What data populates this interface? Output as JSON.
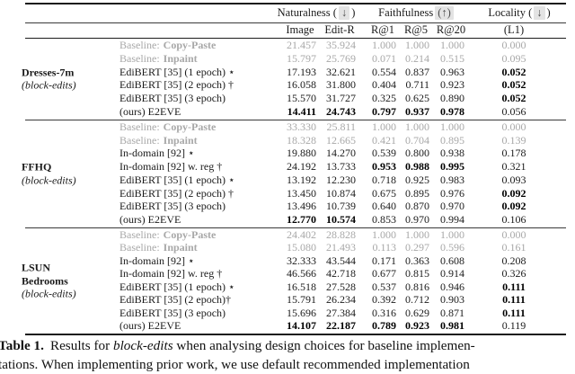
{
  "colors": {
    "muted_gray": "#a8a8a8",
    "arrow_highlight_box": "#e3e3e3",
    "rule_black": "#1c1c1c"
  },
  "header": {
    "groups": [
      {
        "label": "Naturalness (",
        "boxed": "↓",
        "after": ")",
        "icon": "down-arrow-icon"
      },
      {
        "label": "Faithfulness",
        "boxed": "(↑)",
        "after": "",
        "icon": "up-arrow-icon"
      },
      {
        "label": "Locality (",
        "boxed": "↓",
        "after": ")",
        "icon": "down-arrow-icon"
      }
    ],
    "columns": [
      "Image",
      "Edit-R",
      "R@1",
      "R@5",
      "R@20",
      "(L1)"
    ]
  },
  "blocks": [
    {
      "dataset_lines": [
        "Dresses-7m"
      ],
      "dataset_note": "(block-edits)",
      "rows": [
        {
          "prefix": "Baseline:",
          "method": "Copy-Paste",
          "muted": true,
          "values": [
            "21.457",
            "35.924",
            "1.000",
            "1.000",
            "1.000",
            "0.000"
          ],
          "bold": [
            false,
            false,
            false,
            false,
            false,
            false
          ]
        },
        {
          "prefix": "Baseline:",
          "method": "Inpaint",
          "muted": true,
          "values": [
            "15.797",
            "25.769",
            "0.071",
            "0.214",
            "0.515",
            "0.095"
          ],
          "bold": [
            false,
            false,
            false,
            false,
            false,
            false
          ]
        },
        {
          "method": "EdiBERT [35] (1 epoch) ⋆",
          "muted": false,
          "values": [
            "17.193",
            "32.621",
            "0.554",
            "0.837",
            "0.963",
            "0.052"
          ],
          "bold": [
            false,
            false,
            false,
            false,
            false,
            true
          ]
        },
        {
          "method": "EdiBERT [35] (2 epoch) †",
          "muted": false,
          "values": [
            "16.058",
            "31.800",
            "0.404",
            "0.711",
            "0.923",
            "0.052"
          ],
          "bold": [
            false,
            false,
            false,
            false,
            false,
            true
          ]
        },
        {
          "method": "EdiBERT [35] (3 epoch)",
          "muted": false,
          "values": [
            "15.570",
            "31.727",
            "0.325",
            "0.625",
            "0.890",
            "0.052"
          ],
          "bold": [
            false,
            false,
            false,
            false,
            false,
            true
          ]
        },
        {
          "method": "(ours) E2EVE",
          "muted": false,
          "values": [
            "14.411",
            "24.743",
            "0.797",
            "0.937",
            "0.978",
            "0.056"
          ],
          "bold": [
            true,
            true,
            true,
            true,
            true,
            false
          ]
        }
      ]
    },
    {
      "dataset_lines": [
        "FFHQ"
      ],
      "dataset_note": "(block-edits)",
      "rows": [
        {
          "prefix": "Baseline:",
          "method": "Copy-Paste",
          "muted": true,
          "values": [
            "33.330",
            "25.811",
            "1.000",
            "1.000",
            "1.000",
            "0.000"
          ],
          "bold": [
            false,
            false,
            false,
            false,
            false,
            false
          ]
        },
        {
          "prefix": "Baseline:",
          "method": "Inpaint",
          "muted": true,
          "values": [
            "18.328",
            "12.665",
            "0.421",
            "0.704",
            "0.895",
            "0.139"
          ],
          "bold": [
            false,
            false,
            false,
            false,
            false,
            false
          ]
        },
        {
          "method": "In-domain [92] ⋆",
          "muted": false,
          "values": [
            "19.880",
            "14.270",
            "0.539",
            "0.800",
            "0.938",
            "0.178"
          ],
          "bold": [
            false,
            false,
            false,
            false,
            false,
            false
          ]
        },
        {
          "method": "In-domain [92] w. reg †",
          "muted": false,
          "values": [
            "24.192",
            "13.733",
            "0.953",
            "0.988",
            "0.995",
            "0.321"
          ],
          "bold": [
            false,
            false,
            true,
            true,
            true,
            false
          ]
        },
        {
          "method": "EdiBERT [35] (1 epoch) ⋆",
          "muted": false,
          "values": [
            "13.192",
            "12.230",
            "0.718",
            "0.925",
            "0.983",
            "0.093"
          ],
          "bold": [
            false,
            false,
            false,
            false,
            false,
            false
          ]
        },
        {
          "method": "EdiBERT [35] (2 epoch) †",
          "muted": false,
          "values": [
            "13.450",
            "10.874",
            "0.675",
            "0.895",
            "0.976",
            "0.092"
          ],
          "bold": [
            false,
            false,
            false,
            false,
            false,
            true
          ]
        },
        {
          "method": "EdiBERT [35] (3 epoch)",
          "muted": false,
          "values": [
            "13.496",
            "10.739",
            "0.640",
            "0.870",
            "0.970",
            "0.092"
          ],
          "bold": [
            false,
            false,
            false,
            false,
            false,
            true
          ]
        },
        {
          "method": "(ours) E2EVE",
          "muted": false,
          "values": [
            "12.770",
            "10.574",
            "0.853",
            "0.970",
            "0.994",
            "0.106"
          ],
          "bold": [
            true,
            true,
            false,
            false,
            false,
            false
          ]
        }
      ]
    },
    {
      "dataset_lines": [
        "LSUN",
        "Bedrooms"
      ],
      "dataset_note": "(block-edits)",
      "rows": [
        {
          "prefix": "Baseline:",
          "method": "Copy-Paste",
          "muted": true,
          "values": [
            "24.402",
            "28.828",
            "1.000",
            "1.000",
            "1.000",
            "0.000"
          ],
          "bold": [
            false,
            false,
            false,
            false,
            false,
            false
          ]
        },
        {
          "prefix": "Baseline:",
          "method": "Inpaint",
          "muted": true,
          "values": [
            "15.080",
            "21.493",
            "0.113",
            "0.297",
            "0.596",
            "0.161"
          ],
          "bold": [
            false,
            false,
            false,
            false,
            false,
            false
          ]
        },
        {
          "method": "In-domain [92] ⋆",
          "muted": false,
          "values": [
            "32.333",
            "43.544",
            "0.171",
            "0.363",
            "0.608",
            "0.208"
          ],
          "bold": [
            false,
            false,
            false,
            false,
            false,
            false
          ]
        },
        {
          "method": "In-domain [92] w. reg †",
          "muted": false,
          "values": [
            "46.566",
            "42.718",
            "0.677",
            "0.815",
            "0.914",
            "0.326"
          ],
          "bold": [
            false,
            false,
            false,
            false,
            false,
            false
          ]
        },
        {
          "method": "EdiBERT [35] (1 epoch) ⋆",
          "muted": false,
          "values": [
            "16.518",
            "27.528",
            "0.537",
            "0.816",
            "0.946",
            "0.111"
          ],
          "bold": [
            false,
            false,
            false,
            false,
            false,
            true
          ]
        },
        {
          "method": "EdiBERT [35] (2 epoch)†",
          "muted": false,
          "values": [
            "15.791",
            "26.234",
            "0.392",
            "0.712",
            "0.903",
            "0.111"
          ],
          "bold": [
            false,
            false,
            false,
            false,
            false,
            true
          ]
        },
        {
          "method": "EdiBERT [35] (3 epoch)",
          "muted": false,
          "values": [
            "15.696",
            "27.384",
            "0.316",
            "0.629",
            "0.871",
            "0.111"
          ],
          "bold": [
            false,
            false,
            false,
            false,
            false,
            true
          ]
        },
        {
          "method": "(ours) E2EVE",
          "muted": false,
          "values": [
            "14.107",
            "22.187",
            "0.789",
            "0.923",
            "0.981",
            "0.119"
          ],
          "bold": [
            true,
            true,
            true,
            true,
            true,
            false
          ]
        }
      ]
    }
  ],
  "caption": {
    "label": "Table 1.",
    "text1a": "Results for",
    "italic": "block-edits",
    "text1b": "when analysing design choices for baseline implemen-",
    "line2": "tations. When implementing prior work, we use default recommended implementation"
  }
}
